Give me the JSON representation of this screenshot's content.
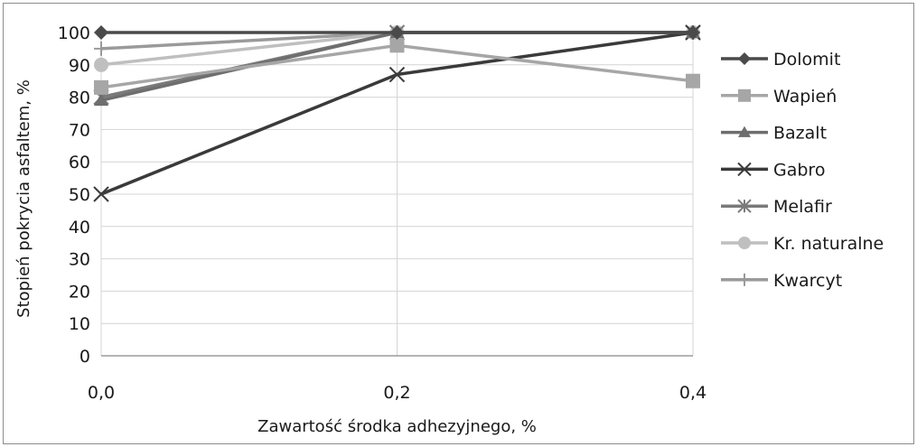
{
  "chart_data": {
    "type": "line",
    "x": [
      "0,0",
      "0,2",
      "0,4"
    ],
    "xlabel": "Zawartość środka adhezyjnego, %",
    "ylabel": "Stopień pokrycia asfaltem, %",
    "ylim": [
      0,
      100
    ],
    "yticks": [
      "0",
      "10",
      "20",
      "30",
      "40",
      "50",
      "60",
      "70",
      "80",
      "90",
      "100"
    ],
    "grid": "horizontal",
    "legend_position": "right",
    "series": [
      {
        "name": "Dolomit",
        "values": [
          100,
          100,
          100
        ],
        "marker": "diamond",
        "color": "#4a4a4a"
      },
      {
        "name": "Wapień",
        "values": [
          83,
          96,
          85
        ],
        "marker": "square",
        "color": "#a6a6a6"
      },
      {
        "name": "Bazalt",
        "values": [
          79,
          100,
          100
        ],
        "marker": "triangle",
        "color": "#6e6e6e"
      },
      {
        "name": "Gabro",
        "values": [
          50,
          87,
          100
        ],
        "marker": "x",
        "color": "#3a3a3a"
      },
      {
        "name": "Melafir",
        "values": [
          80,
          100,
          100
        ],
        "marker": "star",
        "color": "#7a7a7a"
      },
      {
        "name": "Kr. naturalne",
        "values": [
          90,
          100,
          100
        ],
        "marker": "circle",
        "color": "#bfbfbf"
      },
      {
        "name": "Kwarcyt",
        "values": [
          95,
          100,
          100
        ],
        "marker": "plus",
        "color": "#9a9a9a"
      }
    ]
  }
}
